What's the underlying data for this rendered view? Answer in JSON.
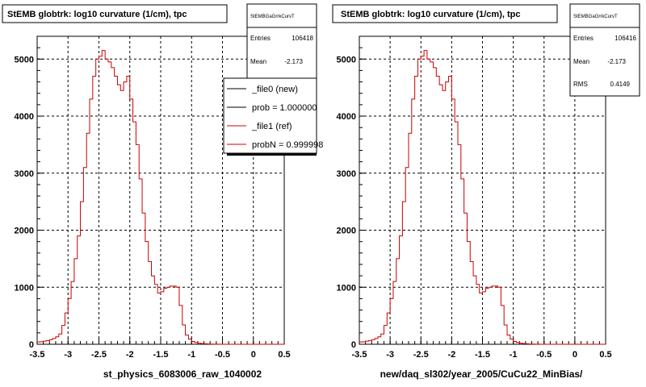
{
  "chart_data": [
    {
      "type": "histogram",
      "title": "StEMB globtrk: log10 curvature (1/cm), tpc",
      "xlabel": "st_physics_6083006_raw_1040002",
      "xlim": [
        -3.5,
        0.5
      ],
      "ylim": [
        0,
        5400
      ],
      "x_ticks": [
        "-3.5",
        "-3",
        "-2.5",
        "-2",
        "-1.5",
        "-1",
        "-0.5",
        "0",
        "0.5"
      ],
      "y_ticks": [
        "0",
        "1000",
        "2000",
        "3000",
        "4000",
        "5000"
      ],
      "grid": true,
      "stats": {
        "name": "StEMBGaGrrkCurvT",
        "rows": [
          {
            "label": "Entries",
            "value": "106418"
          },
          {
            "label": "Mean",
            "value": "-2.173"
          }
        ]
      },
      "legend": {
        "placement": "right-overlapping",
        "entries": [
          {
            "label": "_file0 (new)",
            "color": "#000000"
          },
          {
            "label": "prob = 1.000000",
            "color": "#000000"
          },
          {
            "label": "_file1 (ref)",
            "color": "#cc0000"
          },
          {
            "label": "probN = 0.999998",
            "color": "#cc0000"
          }
        ]
      },
      "series": [
        {
          "color": "#cc0000",
          "bin_width": 0.05,
          "x_start": -3.5,
          "values": [
            40,
            45,
            55,
            65,
            80,
            100,
            130,
            180,
            330,
            550,
            800,
            1100,
            1500,
            1900,
            2500,
            3100,
            3700,
            4300,
            4700,
            5000,
            5050,
            5150,
            5000,
            4950,
            4850,
            4700,
            4550,
            4450,
            4600,
            4700,
            4300,
            3900,
            3500,
            2900,
            2300,
            1800,
            1450,
            1200,
            1050,
            900,
            920,
            980,
            1000,
            1020,
            1020,
            1000,
            680,
            340,
            160,
            90,
            50,
            30,
            20,
            12,
            8,
            6,
            4,
            2,
            1,
            0,
            0,
            0,
            0,
            0,
            0,
            0,
            0,
            0,
            0,
            0,
            0,
            0,
            0,
            0,
            0,
            0,
            0,
            0,
            0,
            0
          ]
        }
      ]
    },
    {
      "type": "histogram",
      "title": "StEMB globtrk: log10 curvature (1/cm), tpc",
      "xlabel": "new/daq_sl302/year_2005/CuCu22_MinBias/",
      "xlim": [
        -3.5,
        0.5
      ],
      "ylim": [
        0,
        5400
      ],
      "x_ticks": [
        "-3.5",
        "-3",
        "-2.5",
        "-2",
        "-1.5",
        "-1",
        "-0.5",
        "0",
        "0.5"
      ],
      "y_ticks": [
        "0",
        "1000",
        "2000",
        "3000",
        "4000",
        "5000"
      ],
      "grid": true,
      "stats": {
        "name": "StEMBGaGrrkCurvT",
        "rows": [
          {
            "label": "Entries",
            "value": "106416"
          },
          {
            "label": "Mean",
            "value": "-2.173"
          },
          {
            "label": "RMS",
            "value": "0.4149"
          }
        ]
      },
      "series": [
        {
          "color": "#cc0000",
          "bin_width": 0.05,
          "x_start": -3.5,
          "values": [
            40,
            45,
            55,
            65,
            80,
            100,
            130,
            180,
            330,
            550,
            800,
            1100,
            1500,
            1900,
            2500,
            3100,
            3700,
            4300,
            4700,
            5000,
            5050,
            5150,
            5000,
            4950,
            4850,
            4700,
            4550,
            4450,
            4600,
            4700,
            4300,
            3900,
            3500,
            2900,
            2300,
            1800,
            1450,
            1200,
            1050,
            900,
            920,
            980,
            1000,
            1020,
            1020,
            1000,
            680,
            340,
            160,
            90,
            50,
            30,
            20,
            12,
            8,
            6,
            4,
            2,
            1,
            0,
            0,
            0,
            0,
            0,
            0,
            0,
            0,
            0,
            0,
            0,
            0,
            0,
            0,
            0,
            0,
            0,
            0,
            0,
            0,
            0
          ]
        }
      ]
    }
  ]
}
